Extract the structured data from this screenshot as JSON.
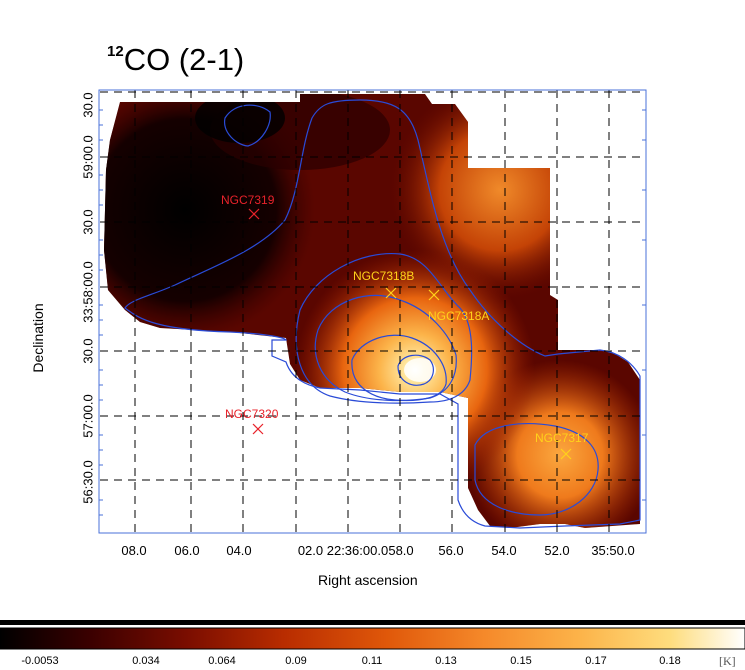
{
  "title": {
    "superscript": "12",
    "text": "CO (2-1)"
  },
  "axes": {
    "xlabel": "Right ascension",
    "ylabel": "Declination"
  },
  "x_ticks": [
    "08.0",
    "06.0",
    "04.0",
    "02.0 22:36:00.0",
    "58.0",
    "56.0",
    "54.0",
    "52.0",
    "35:50.0"
  ],
  "y_ticks": [
    "30.0",
    "59:00.0",
    "30.0",
    "33:58:00.0",
    "30.0",
    "57:00.0",
    "56:30.0"
  ],
  "colorbar": {
    "ticks": [
      "-0.0053",
      "0.034",
      "0.064",
      "0.09",
      "0.11",
      "0.13",
      "0.15",
      "0.17",
      "0.18"
    ],
    "unit": "[K]",
    "colormap": [
      "#000000",
      "#3a0000",
      "#7a0d00",
      "#b82c00",
      "#e0580a",
      "#f5892a",
      "#fcb44a",
      "#fedd7e",
      "#ffffff"
    ]
  },
  "chart_data": {
    "type": "heatmap",
    "title": "12CO (2-1)",
    "xlabel": "Right ascension",
    "ylabel": "Declination",
    "grid": true,
    "value_range": [
      -0.0053,
      0.18
    ],
    "unit": "K",
    "contour_color": "#2a4bd7",
    "galaxies": [
      {
        "name": "NGC7319",
        "color": "#e8222a"
      },
      {
        "name": "NGC7318B",
        "color": "#ffd21a"
      },
      {
        "name": "NGC7318A",
        "color": "#ffd21a"
      },
      {
        "name": "NGC7320",
        "color": "#e8222a"
      },
      {
        "name": "NGC7317",
        "color": "#ffd21a"
      }
    ]
  }
}
